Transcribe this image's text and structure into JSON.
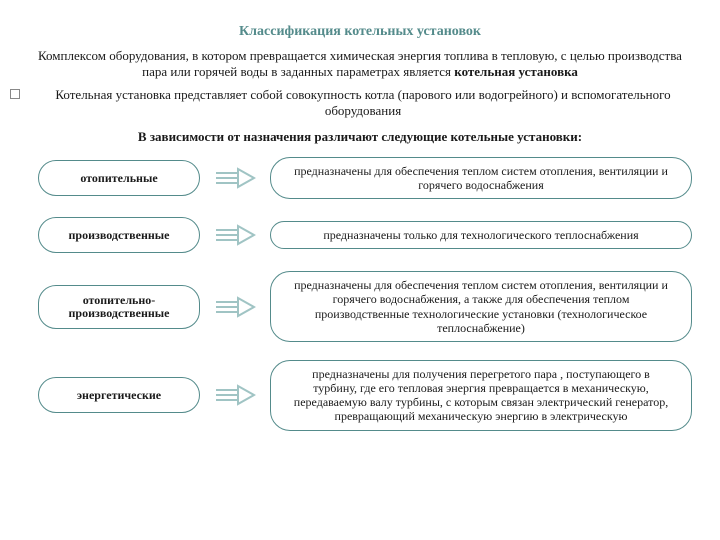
{
  "colors": {
    "title": "#548b8b",
    "text": "#1a1a1a",
    "pill_border": "#548b8b",
    "pill_bg": "#ffffff",
    "pill_text": "#1a1a1a",
    "arrow": "#a0c4c4",
    "desc_border": "#548b8b",
    "desc_bg": "#ffffff",
    "desc_text": "#1a1a1a",
    "background": "#ffffff"
  },
  "fonts": {
    "title_size": 14,
    "body_size": 13,
    "pill_size": 12,
    "desc_size": 12
  },
  "layout": {
    "pill_width": 162,
    "pill_radius": 18,
    "desc_radius": 20,
    "arrow_width": 42,
    "border_width": 1.5,
    "row_gap": 18
  },
  "title": "Классификация котельных установок",
  "intro_p1_a": "Комплексом оборудования, в котором превращается химическая энергия топлива в тепловую, с целью производства пара или горячей воды в заданных параметрах является ",
  "intro_p1_kw": "котельная установка",
  "intro_p2": "Котельная установка представляет собой совокупность котла (парового или водогрейного) и вспомогательного оборудования",
  "subtitle": "В зависимости от назначения различают следующие котельные установки:",
  "rows": [
    {
      "label": "отопительные",
      "tall": false,
      "desc": "предназначены для обеспечения теплом систем отопления, вентиляции и горячего водоснабжения"
    },
    {
      "label": "производственные",
      "tall": false,
      "desc": "предназначены только для технологического теплоснабжения"
    },
    {
      "label": "отопительно-производственные",
      "tall": true,
      "desc": "предназначены для обеспечения теплом систем отопления, вентиляции и горячего водоснабжения, а также для обеспечения теплом производственные технологические установки (технологическое теплоснабжение)"
    },
    {
      "label": "энергетические",
      "tall": false,
      "desc": "предназначены для получения перегретого пара , поступающего в турбину, где его тепловая энергия превращается в механическую, передаваемую валу турбины, с которым связан электрический генератор, превращающий механическую энергию в электрическую"
    }
  ]
}
